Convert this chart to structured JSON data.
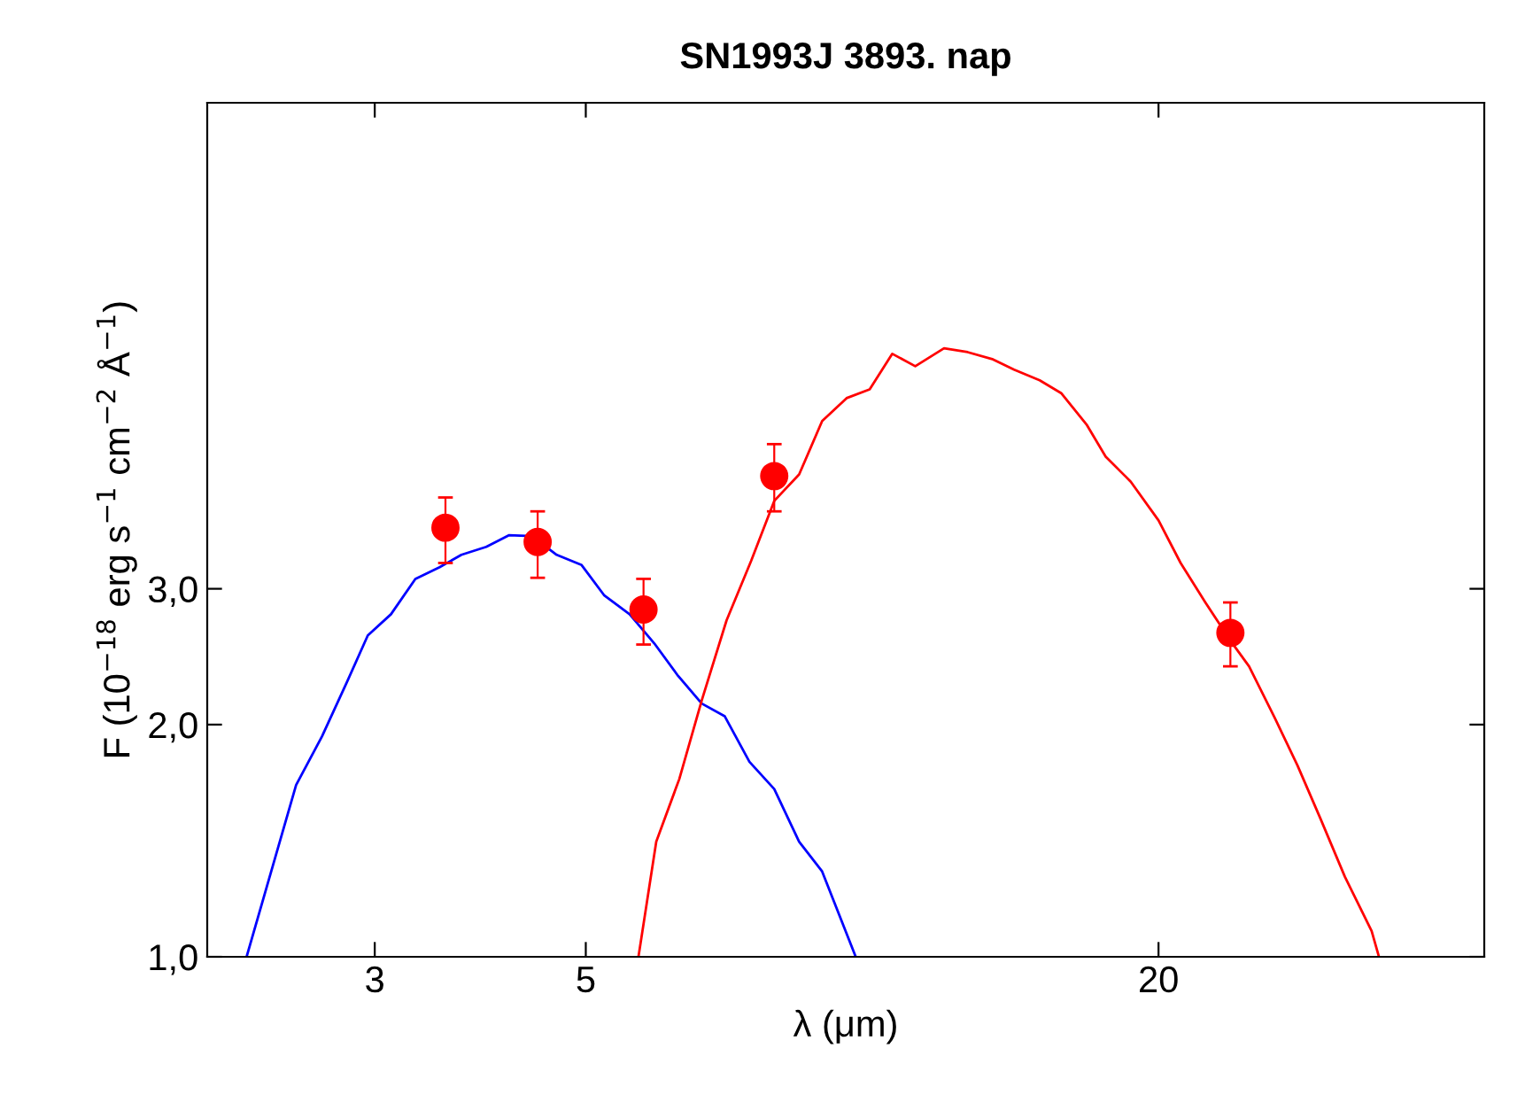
{
  "chart_data": {
    "type": "line",
    "title": "SN1993J 3893. nap",
    "xlabel": "λ (μm)",
    "ylabel": "F (10$^{−18}$ erg s$^{−1}$ cm$^{−2}$ Å$^{−1}$)",
    "log": "xy",
    "xlim": [
      2.0,
      44
    ],
    "ylim": [
      1.0,
      12.8
    ],
    "xticks": [
      3,
      5,
      20
    ],
    "yticks": [
      {
        "value": 1,
        "label": "1,0"
      },
      {
        "value": 2,
        "label": "2,0"
      },
      {
        "value": 3,
        "label": "3,0"
      }
    ],
    "grid": false,
    "legend": false,
    "series": [
      {
        "color": "#0000ff",
        "marker": "none",
        "x": [
          2.2,
          2.48,
          2.64,
          2.8,
          2.95,
          3.12,
          3.31,
          3.51,
          3.7,
          3.93,
          4.15,
          4.39,
          4.66,
          4.95,
          5.23,
          5.56,
          5.9,
          6.24,
          6.62,
          7.0,
          7.43,
          7.89,
          8.38,
          8.86,
          9.61
        ],
        "values": [
          1.0,
          1.67,
          1.93,
          2.26,
          2.61,
          2.78,
          3.09,
          3.2,
          3.32,
          3.4,
          3.52,
          3.51,
          3.32,
          3.22,
          2.94,
          2.78,
          2.55,
          2.32,
          2.13,
          2.05,
          1.79,
          1.65,
          1.41,
          1.29,
          1.0
        ]
      },
      {
        "color": "#ff0000",
        "marker": "none",
        "x": [
          5.68,
          5.93,
          6.27,
          6.62,
          7.03,
          7.46,
          7.89,
          8.38,
          8.86,
          9.4,
          9.94,
          10.5,
          11.1,
          11.9,
          12.6,
          13.4,
          14.1,
          15.0,
          15.8,
          16.8,
          17.6,
          18.7,
          20.0,
          21.1,
          22.4,
          23.8,
          24.9,
          26.5,
          28.0,
          29.6,
          31.4,
          33.5,
          34.1
        ],
        "values": [
          1.0,
          1.41,
          1.7,
          2.15,
          2.73,
          3.26,
          3.9,
          4.22,
          4.95,
          5.3,
          5.44,
          6.05,
          5.83,
          6.15,
          6.08,
          5.95,
          5.77,
          5.59,
          5.38,
          4.9,
          4.45,
          4.13,
          3.68,
          3.24,
          2.88,
          2.57,
          2.38,
          2.04,
          1.77,
          1.51,
          1.27,
          1.08,
          1.0
        ]
      },
      {
        "type": "scatter",
        "color": "#ff0000",
        "marker": "circle",
        "x": [
          3.56,
          4.45,
          5.75,
          7.89,
          23.8
        ],
        "values": [
          3.6,
          3.45,
          2.82,
          4.2,
          2.63
        ],
        "errors": [
          [
            3.24,
            3.94
          ],
          [
            3.1,
            3.78
          ],
          [
            2.54,
            3.09
          ],
          [
            3.78,
            4.62
          ],
          [
            2.38,
            2.88
          ]
        ]
      }
    ]
  }
}
